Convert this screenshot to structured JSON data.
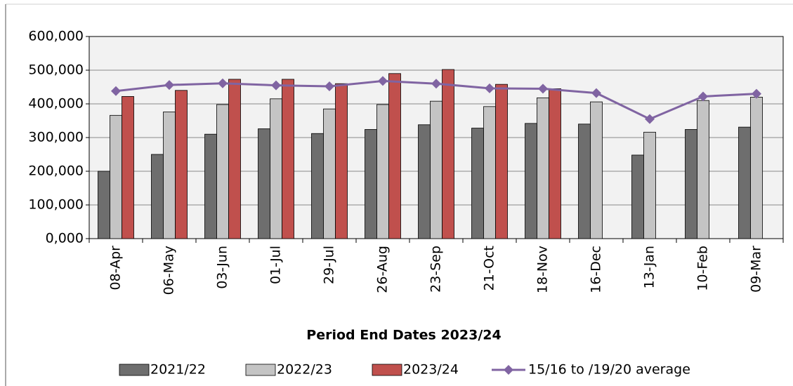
{
  "chart_data": {
    "type": "bar",
    "x_label": "Period End Dates 2023/24",
    "categories": [
      "08-Apr",
      "06-May",
      "03-Jun",
      "01-Jul",
      "29-Jul",
      "26-Aug",
      "23-Sep",
      "21-Oct",
      "18-Nov",
      "16-Dec",
      "13-Jan",
      "10-Feb",
      "09-Mar"
    ],
    "series": [
      {
        "name": "2021/22",
        "type": "bar",
        "color": "#6e6e6e",
        "values": [
          200000,
          250000,
          310000,
          326000,
          312000,
          324000,
          338000,
          328000,
          342000,
          340000,
          248000,
          324000,
          331000
        ]
      },
      {
        "name": "2022/23",
        "type": "bar",
        "color": "#c4c4c4",
        "values": [
          366000,
          376000,
          398000,
          415000,
          385000,
          398000,
          408000,
          392000,
          418000,
          406000,
          316000,
          410000,
          420000
        ]
      },
      {
        "name": "2023/24",
        "type": "bar",
        "color": "#c0504d",
        "values": [
          422000,
          440000,
          473000,
          473000,
          460000,
          490000,
          502000,
          458000,
          445000,
          null,
          null,
          null,
          null
        ]
      },
      {
        "name": "15/16 to /19/20 average",
        "type": "line",
        "color": "#8064a2",
        "values": [
          438000,
          456000,
          461000,
          455000,
          452000,
          468000,
          460000,
          446000,
          445000,
          432000,
          355000,
          422000,
          430000
        ]
      }
    ],
    "ylim": [
      0,
      600000
    ],
    "yticks": [
      {
        "value": 0,
        "label": "0,000"
      },
      {
        "value": 100000,
        "label": "100,000"
      },
      {
        "value": 200000,
        "label": "200,000"
      },
      {
        "value": 300000,
        "label": "300,000"
      },
      {
        "value": 400000,
        "label": "400,000"
      },
      {
        "value": 500000,
        "label": "500,000"
      },
      {
        "value": 600000,
        "label": "600,000"
      }
    ],
    "grid": true,
    "legend": "bottom"
  }
}
